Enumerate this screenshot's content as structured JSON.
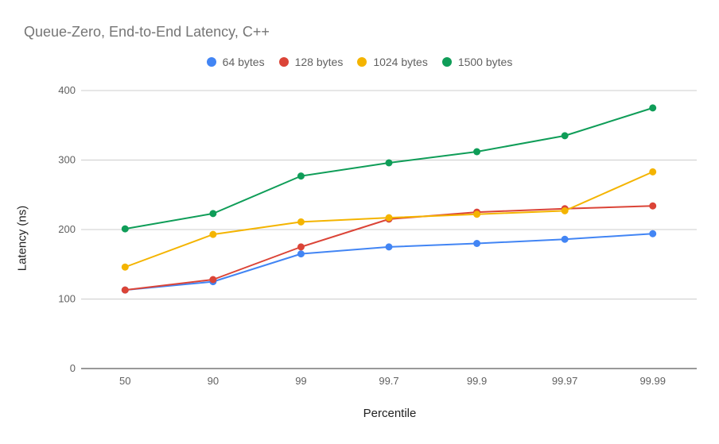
{
  "chart_data": {
    "type": "line",
    "title": "Queue-Zero, End-to-End Latency, C++",
    "xlabel": "Percentile",
    "ylabel": "Latency (ns)",
    "categories": [
      "50",
      "90",
      "99",
      "99.7",
      "99.9",
      "99.97",
      "99.99"
    ],
    "ylim": [
      0,
      400
    ],
    "yticks": [
      "0",
      "100",
      "200",
      "300",
      "400"
    ],
    "grid": true,
    "legend_position": "top",
    "series": [
      {
        "name": "64 bytes",
        "color": "#4285F4",
        "values": [
          113,
          125,
          165,
          175,
          180,
          186,
          194
        ]
      },
      {
        "name": "128 bytes",
        "color": "#DB4437",
        "values": [
          113,
          128,
          175,
          215,
          225,
          230,
          234
        ]
      },
      {
        "name": "1024 bytes",
        "color": "#F4B400",
        "values": [
          146,
          193,
          211,
          217,
          222,
          227,
          283
        ]
      },
      {
        "name": "1500 bytes",
        "color": "#0F9D58",
        "values": [
          201,
          223,
          277,
          296,
          312,
          335,
          375
        ]
      }
    ]
  }
}
